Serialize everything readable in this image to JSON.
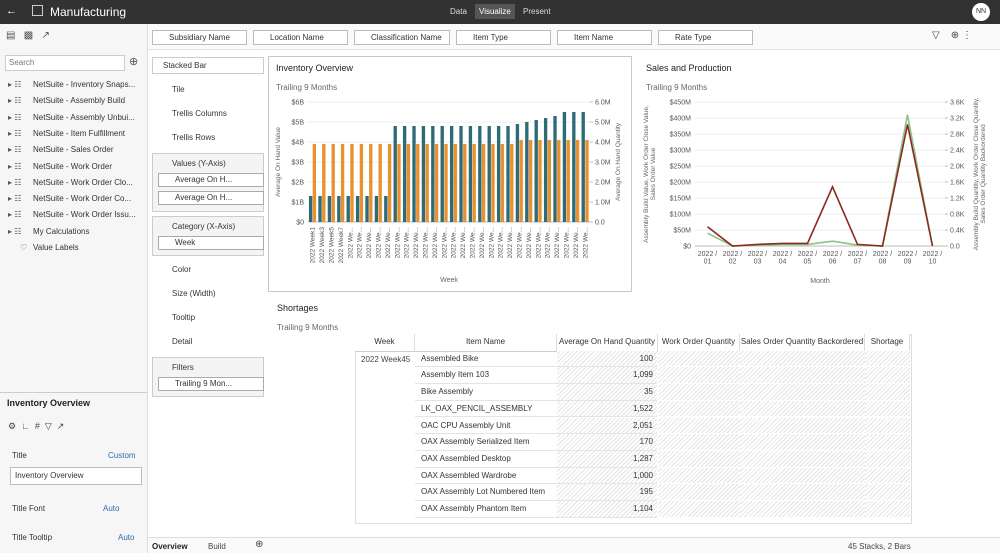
{
  "app": {
    "title": "Manufacturing",
    "tabs": [
      "Data",
      "Visualize",
      "Present"
    ],
    "user": "NN"
  },
  "filters": [
    "Subsidiary Name",
    "Location Name",
    "Classification Name",
    "Item Type",
    "Item Name",
    "Rate Type"
  ],
  "data_panel": {
    "search": "Search",
    "items": [
      "NetSuite - Inventory Snaps...",
      "NetSuite - Assembly Build",
      "NetSuite - Assembly Unbui...",
      "NetSuite - Item Fulfillment",
      "NetSuite - Sales Order",
      "NetSuite - Work Order",
      "NetSuite - Work Order Clo...",
      "NetSuite - Work Order Co...",
      "NetSuite - Work Order Issu...",
      "My Calculations",
      "Value Labels"
    ]
  },
  "grammar": {
    "chart_type": "Stacked Bar",
    "fields": [
      "Tile",
      "Trellis Columns",
      "Trellis Rows",
      "Color",
      "Size (Width)",
      "Tooltip",
      "Detail"
    ],
    "values": {
      "label": "Values (Y-Axis)",
      "items": [
        "Average On H...",
        "Average On H..."
      ]
    },
    "category": {
      "label": "Category (X-Axis)",
      "items": [
        "Week"
      ]
    },
    "filters": {
      "label": "Filters",
      "items": [
        "Trailing 9 Mon..."
      ]
    }
  },
  "properties": {
    "title": "Inventory Overview",
    "input": "Inventory Overview",
    "fields": [
      {
        "label": "Title",
        "value": "Custom"
      },
      {
        "label": "Title Font",
        "value": "Auto"
      },
      {
        "label": "Title Tooltip",
        "value": "Auto"
      }
    ]
  },
  "chart_data": [
    {
      "type": "bar",
      "title": "Inventory Overview",
      "subtitle": "Trailing 9 Months",
      "y_label": "Average On Hand Value",
      "y2_label": "Average On Hand Quantity",
      "x_label": "Week",
      "categories": [
        "2022 Week1",
        "2022 Week3",
        "2022 Week5",
        "2022 Week7",
        "2022 We...",
        "2022 We...",
        "2022 We...",
        "2022 We...",
        "2022 We...",
        "2022 We...",
        "2022 We...",
        "2022 We...",
        "2022 We...",
        "2022 We...",
        "2022 We...",
        "2022 We...",
        "2022 We...",
        "2022 We...",
        "2022 We...",
        "2022 We...",
        "2022 We...",
        "2022 We...",
        "2022 We...",
        "2022 We...",
        "2022 We...",
        "2022 We...",
        "2022 We...",
        "2022 We...",
        "2022 We...",
        "2022 We..."
      ],
      "series": [
        {
          "color": "#2f6b77",
          "axis": "y",
          "values": [
            1300000000,
            1300000000,
            1300000000,
            1300000000,
            1300000000,
            1300000000,
            1300000000,
            1300000000,
            1300000000,
            4800000000,
            4800000000,
            4800000000,
            4800000000,
            4800000000,
            4800000000,
            4800000000,
            4800000000,
            4800000000,
            4800000000,
            4800000000,
            4800000000,
            4800000000,
            4900000000,
            5000000000,
            5100000000,
            5200000000,
            5300000000,
            5500000000,
            5500000000,
            5500000000
          ]
        },
        {
          "color": "#e8912e",
          "axis": "y2",
          "values": [
            3900000,
            3900000,
            3900000,
            3900000,
            3900000,
            3900000,
            3900000,
            3900000,
            3900000,
            3900000,
            3900000,
            3900000,
            3900000,
            3900000,
            3900000,
            3900000,
            3900000,
            3900000,
            3900000,
            3900000,
            3900000,
            3900000,
            4100000,
            4100000,
            4100000,
            4100000,
            4100000,
            4100000,
            4100000,
            4100000
          ]
        }
      ],
      "ylim": [
        0,
        6000000000
      ],
      "yticks": [
        {
          "value": 0,
          "label": "$0"
        },
        {
          "value": 1000000000,
          "label": "$1B"
        },
        {
          "value": 2000000000,
          "label": "$2B"
        },
        {
          "value": 3000000000,
          "label": "$3B"
        },
        {
          "value": 4000000000,
          "label": "$4B"
        },
        {
          "value": 5000000000,
          "label": "$5B"
        },
        {
          "value": 6000000000,
          "label": "$6B"
        }
      ],
      "y2lim": [
        0,
        6000000
      ],
      "y2ticks": [
        {
          "value": 0,
          "label": "0.0"
        },
        {
          "value": 1000000,
          "label": "1.0M"
        },
        {
          "value": 2000000,
          "label": "2.0M"
        },
        {
          "value": 3000000,
          "label": "3.0M"
        },
        {
          "value": 4000000,
          "label": "4.0M"
        },
        {
          "value": 5000000,
          "label": "5.0M"
        },
        {
          "value": 6000000,
          "label": "6.0M"
        }
      ]
    },
    {
      "type": "line",
      "title": "Sales and Production",
      "subtitle": "Trailing 9 Months",
      "y_label": "Assembly Build Value, Work Order Close Value, Sales Order Value",
      "y2_label": "Assembly Build Quantity, Work Order Close Quantity, Sales Order Quantity Backordered",
      "x_label": "Month",
      "categories": [
        "2022 / 01",
        "2022 / 02",
        "2022 / 03",
        "2022 / 04",
        "2022 / 05",
        "2022 / 06",
        "2022 / 07",
        "2022 / 08",
        "2022 / 09",
        "2022 / 10"
      ],
      "series": [
        {
          "color": "#8bc48a",
          "axis": "y",
          "values": [
            40000000,
            0,
            3000000,
            5000000,
            5000000,
            15000000,
            3000000,
            0,
            410000000,
            0
          ]
        },
        {
          "color": "#8b2a1e",
          "axis": "y",
          "values": [
            60000000,
            0,
            5000000,
            8000000,
            8000000,
            185000000,
            5000000,
            0,
            380000000,
            0
          ]
        }
      ],
      "ylim": [
        0,
        450000000
      ],
      "yticks": [
        {
          "value": 0,
          "label": "$0"
        },
        {
          "value": 50000000,
          "label": "$50M"
        },
        {
          "value": 100000000,
          "label": "$100M"
        },
        {
          "value": 150000000,
          "label": "$150M"
        },
        {
          "value": 200000000,
          "label": "$200M"
        },
        {
          "value": 250000000,
          "label": "$250M"
        },
        {
          "value": 300000000,
          "label": "$300M"
        },
        {
          "value": 350000000,
          "label": "$350M"
        },
        {
          "value": 400000000,
          "label": "$400M"
        },
        {
          "value": 450000000,
          "label": "$450M"
        }
      ],
      "y2lim": [
        0,
        3600
      ],
      "y2ticks": [
        {
          "value": 0,
          "label": "0.0"
        },
        {
          "value": 400,
          "label": "0.4K"
        },
        {
          "value": 800,
          "label": "0.8K"
        },
        {
          "value": 1200,
          "label": "1.2K"
        },
        {
          "value": 1600,
          "label": "1.6K"
        },
        {
          "value": 2000,
          "label": "2.0K"
        },
        {
          "value": 2400,
          "label": "2.4K"
        },
        {
          "value": 2800,
          "label": "2.8K"
        },
        {
          "value": 3200,
          "label": "3.2K"
        },
        {
          "value": 3600,
          "label": "3.6K"
        }
      ]
    }
  ],
  "table": {
    "title": "Shortages",
    "subtitle": "Trailing 9 Months",
    "columns": [
      "Week",
      "Item Name",
      "Average On Hand Quantity",
      "Work Order Quantity",
      "Sales Order Quantity Backordered",
      "Shortage"
    ],
    "rows": [
      {
        "week": "2022 Week45",
        "item": "Assembled Bike",
        "quantity": "100"
      },
      {
        "item": "Assembly Item 103",
        "quantity": "1,099"
      },
      {
        "item": "Bike Assembly",
        "quantity": "35"
      },
      {
        "item": "LK_OAX_PENCIL_ASSEMBLY",
        "quantity": "1,522"
      },
      {
        "item": "OAC CPU Assembly Unit",
        "quantity": "2,051"
      },
      {
        "item": "OAX Assembly Serialized Item",
        "quantity": "170"
      },
      {
        "item": "OAX Assembled Desktop",
        "quantity": "1,287"
      },
      {
        "item": "OAX Assembled Wardrobe",
        "quantity": "1,000"
      },
      {
        "item": "OAX Assembly Lot Numbered Item",
        "quantity": "195"
      },
      {
        "item": "OAX Assembly Phantom Item",
        "quantity": "1,104"
      }
    ]
  },
  "footer": {
    "tabs": [
      "Overview",
      "Build"
    ],
    "status": "45 Stacks, 2 Bars"
  }
}
